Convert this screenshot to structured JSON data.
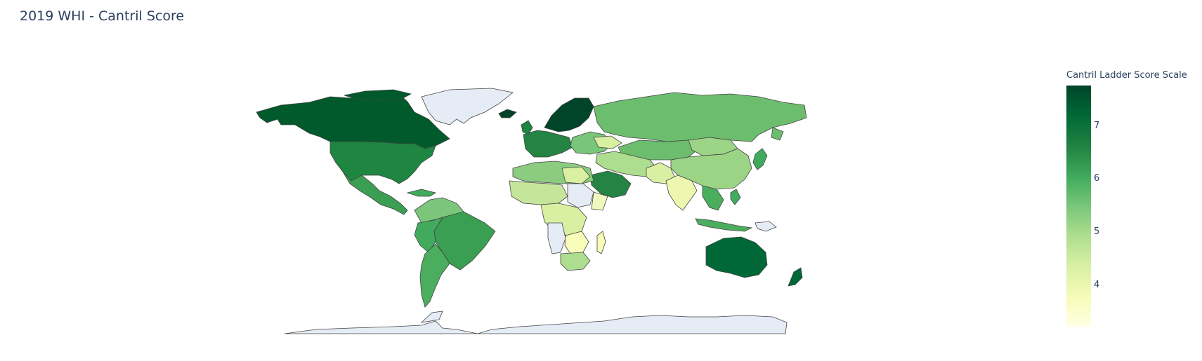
{
  "chart_data": {
    "type": "choropleth",
    "title": "2019 WHI - Cantril Score",
    "colorbar": {
      "title": "Cantril Ladder Score Scale",
      "ticks": [
        "7",
        "6",
        "5",
        "4"
      ],
      "colorscale": "YlGn",
      "range": [
        3.2,
        7.8
      ]
    },
    "regions": [
      {
        "name": "Canada",
        "score": 7.3
      },
      {
        "name": "United States",
        "score": 6.9
      },
      {
        "name": "Mexico",
        "score": 6.6
      },
      {
        "name": "Brazil",
        "score": 6.3
      },
      {
        "name": "Argentina",
        "score": 6.1
      },
      {
        "name": "Australia",
        "score": 7.2
      },
      {
        "name": "New Zealand",
        "score": 7.3
      },
      {
        "name": "Russia",
        "score": 5.6
      },
      {
        "name": "China",
        "score": 5.2
      },
      {
        "name": "India",
        "score": 4.0
      },
      {
        "name": "Saudi Arabia",
        "score": 6.4
      },
      {
        "name": "Nordic countries",
        "score": 7.6
      },
      {
        "name": "Kazakhstan",
        "score": 5.8
      },
      {
        "name": "Southern Africa",
        "score": 4.7
      },
      {
        "name": "Madagascar",
        "score": 3.9
      }
    ],
    "no_data_regions": [
      "Greenland",
      "Antarctica"
    ]
  }
}
